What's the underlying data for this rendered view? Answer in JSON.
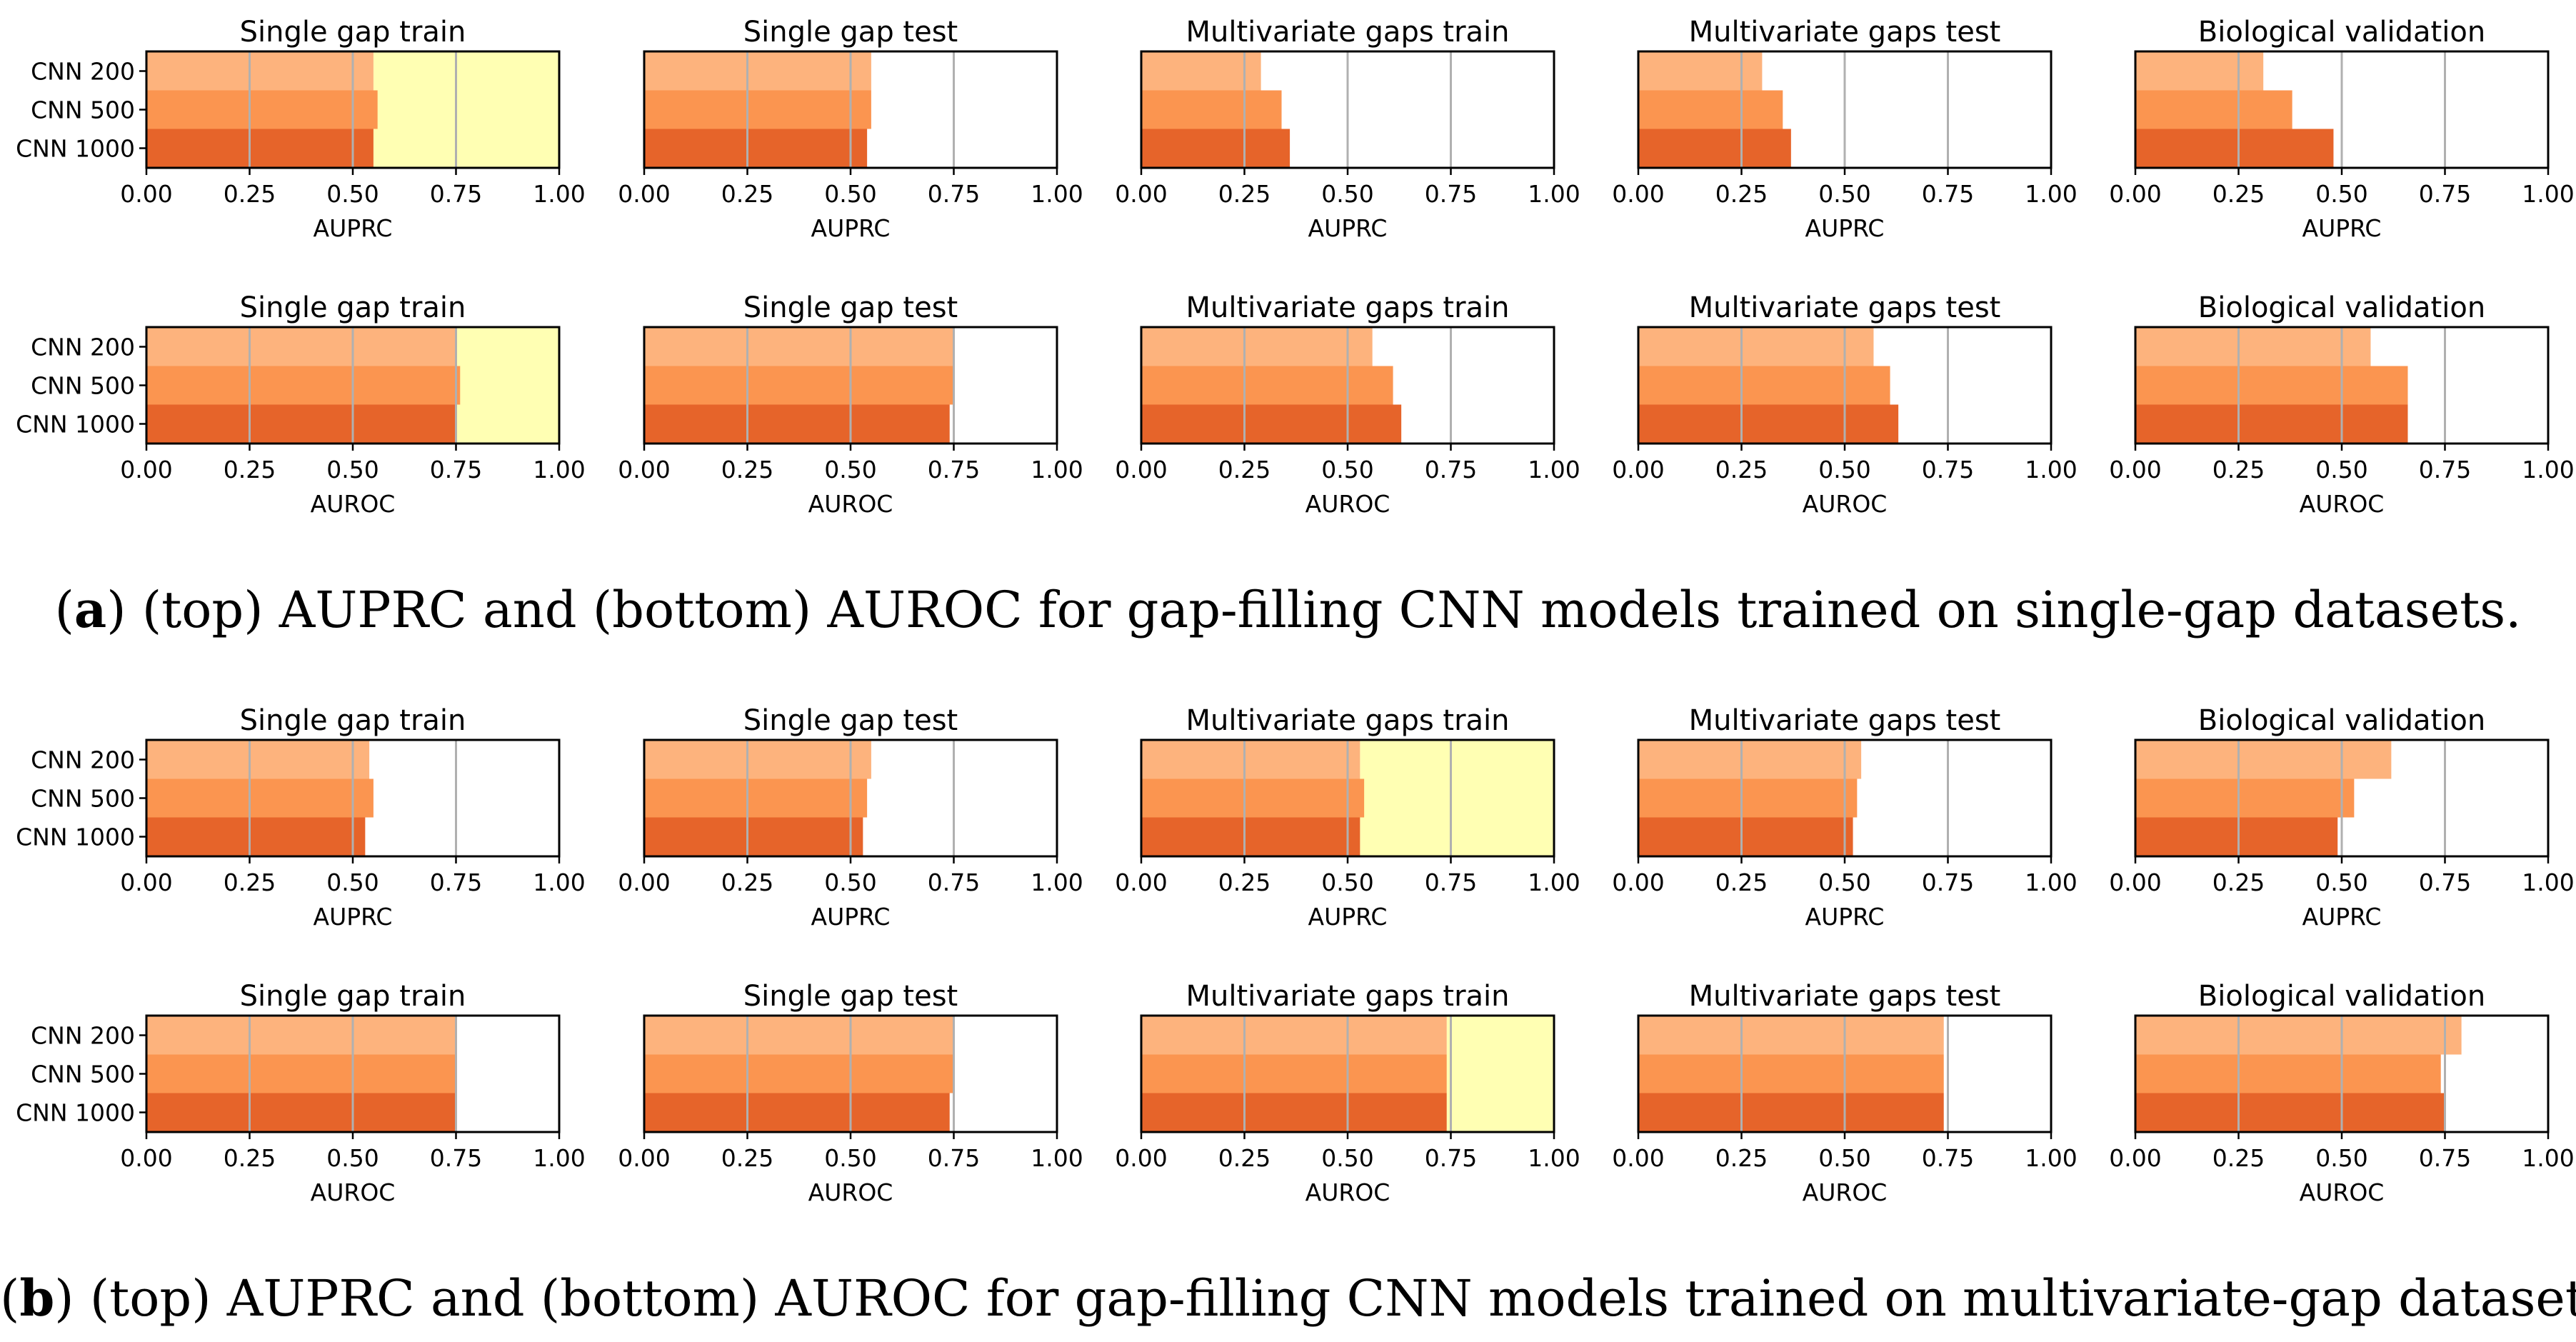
{
  "captions": {
    "a": {
      "letter": "a",
      "text": "(top) AUPRC and (bottom) AUROC for gap-filling CNN models trained on single-gap datasets."
    },
    "b": {
      "letter": "b",
      "text": "(top) AUPRC and (bottom) AUROC for gap-filling CNN models trained on multivariate-gap datasets."
    }
  },
  "colors": {
    "series": [
      "#fdb37d",
      "#fb9550",
      "#e6642a"
    ],
    "highlight": "#ffffb3",
    "grid": "#b0b0b0",
    "axis": "#000000"
  },
  "chart_data": [
    {
      "type": "bar",
      "orientation": "horizontal",
      "title": "Single gap train",
      "xlabel": "AUPRC",
      "categories": [
        "CNN 200",
        "CNN 500",
        "CNN 1000"
      ],
      "values": [
        0.55,
        0.56,
        0.55
      ],
      "xlim": [
        0,
        1
      ],
      "xticks": [
        "0.00",
        "0.25",
        "0.50",
        "0.75",
        "1.00"
      ],
      "grid": "x",
      "highlight": true
    },
    {
      "type": "bar",
      "orientation": "horizontal",
      "title": "Single gap test",
      "xlabel": "AUPRC",
      "categories": [
        "CNN 200",
        "CNN 500",
        "CNN 1000"
      ],
      "values": [
        0.55,
        0.55,
        0.54
      ],
      "xlim": [
        0,
        1
      ],
      "xticks": [
        "0.00",
        "0.25",
        "0.50",
        "0.75",
        "1.00"
      ],
      "grid": "x",
      "highlight": false
    },
    {
      "type": "bar",
      "orientation": "horizontal",
      "title": "Multivariate gaps train",
      "xlabel": "AUPRC",
      "categories": [
        "CNN 200",
        "CNN 500",
        "CNN 1000"
      ],
      "values": [
        0.29,
        0.34,
        0.36
      ],
      "xlim": [
        0,
        1
      ],
      "xticks": [
        "0.00",
        "0.25",
        "0.50",
        "0.75",
        "1.00"
      ],
      "grid": "x",
      "highlight": false
    },
    {
      "type": "bar",
      "orientation": "horizontal",
      "title": "Multivariate gaps test",
      "xlabel": "AUPRC",
      "categories": [
        "CNN 200",
        "CNN 500",
        "CNN 1000"
      ],
      "values": [
        0.3,
        0.35,
        0.37
      ],
      "xlim": [
        0,
        1
      ],
      "xticks": [
        "0.00",
        "0.25",
        "0.50",
        "0.75",
        "1.00"
      ],
      "grid": "x",
      "highlight": false
    },
    {
      "type": "bar",
      "orientation": "horizontal",
      "title": "Biological validation",
      "xlabel": "AUPRC",
      "categories": [
        "CNN 200",
        "CNN 500",
        "CNN 1000"
      ],
      "values": [
        0.31,
        0.38,
        0.48
      ],
      "xlim": [
        0,
        1
      ],
      "xticks": [
        "0.00",
        "0.25",
        "0.50",
        "0.75",
        "1.00"
      ],
      "grid": "x",
      "highlight": false
    },
    {
      "type": "bar",
      "orientation": "horizontal",
      "title": "Single gap train",
      "xlabel": "AUROC",
      "categories": [
        "CNN 200",
        "CNN 500",
        "CNN 1000"
      ],
      "values": [
        0.75,
        0.76,
        0.75
      ],
      "xlim": [
        0,
        1
      ],
      "xticks": [
        "0.00",
        "0.25",
        "0.50",
        "0.75",
        "1.00"
      ],
      "grid": "x",
      "highlight": true
    },
    {
      "type": "bar",
      "orientation": "horizontal",
      "title": "Single gap test",
      "xlabel": "AUROC",
      "categories": [
        "CNN 200",
        "CNN 500",
        "CNN 1000"
      ],
      "values": [
        0.75,
        0.75,
        0.74
      ],
      "xlim": [
        0,
        1
      ],
      "xticks": [
        "0.00",
        "0.25",
        "0.50",
        "0.75",
        "1.00"
      ],
      "grid": "x",
      "highlight": false
    },
    {
      "type": "bar",
      "orientation": "horizontal",
      "title": "Multivariate gaps train",
      "xlabel": "AUROC",
      "categories": [
        "CNN 200",
        "CNN 500",
        "CNN 1000"
      ],
      "values": [
        0.56,
        0.61,
        0.63
      ],
      "xlim": [
        0,
        1
      ],
      "xticks": [
        "0.00",
        "0.25",
        "0.50",
        "0.75",
        "1.00"
      ],
      "grid": "x",
      "highlight": false
    },
    {
      "type": "bar",
      "orientation": "horizontal",
      "title": "Multivariate gaps test",
      "xlabel": "AUROC",
      "categories": [
        "CNN 200",
        "CNN 500",
        "CNN 1000"
      ],
      "values": [
        0.57,
        0.61,
        0.63
      ],
      "xlim": [
        0,
        1
      ],
      "xticks": [
        "0.00",
        "0.25",
        "0.50",
        "0.75",
        "1.00"
      ],
      "grid": "x",
      "highlight": false
    },
    {
      "type": "bar",
      "orientation": "horizontal",
      "title": "Biological validation",
      "xlabel": "AUROC",
      "categories": [
        "CNN 200",
        "CNN 500",
        "CNN 1000"
      ],
      "values": [
        0.57,
        0.66,
        0.66
      ],
      "xlim": [
        0,
        1
      ],
      "xticks": [
        "0.00",
        "0.25",
        "0.50",
        "0.75",
        "1.00"
      ],
      "grid": "x",
      "highlight": false
    },
    {
      "type": "bar",
      "orientation": "horizontal",
      "title": "Single gap train",
      "xlabel": "AUPRC",
      "categories": [
        "CNN 200",
        "CNN 500",
        "CNN 1000"
      ],
      "values": [
        0.54,
        0.55,
        0.53
      ],
      "xlim": [
        0,
        1
      ],
      "xticks": [
        "0.00",
        "0.25",
        "0.50",
        "0.75",
        "1.00"
      ],
      "grid": "x",
      "highlight": false
    },
    {
      "type": "bar",
      "orientation": "horizontal",
      "title": "Single gap test",
      "xlabel": "AUPRC",
      "categories": [
        "CNN 200",
        "CNN 500",
        "CNN 1000"
      ],
      "values": [
        0.55,
        0.54,
        0.53
      ],
      "xlim": [
        0,
        1
      ],
      "xticks": [
        "0.00",
        "0.25",
        "0.50",
        "0.75",
        "1.00"
      ],
      "grid": "x",
      "highlight": false
    },
    {
      "type": "bar",
      "orientation": "horizontal",
      "title": "Multivariate gaps train",
      "xlabel": "AUPRC",
      "categories": [
        "CNN 200",
        "CNN 500",
        "CNN 1000"
      ],
      "values": [
        0.53,
        0.54,
        0.53
      ],
      "xlim": [
        0,
        1
      ],
      "xticks": [
        "0.00",
        "0.25",
        "0.50",
        "0.75",
        "1.00"
      ],
      "grid": "x",
      "highlight": true
    },
    {
      "type": "bar",
      "orientation": "horizontal",
      "title": "Multivariate gaps test",
      "xlabel": "AUPRC",
      "categories": [
        "CNN 200",
        "CNN 500",
        "CNN 1000"
      ],
      "values": [
        0.54,
        0.53,
        0.52
      ],
      "xlim": [
        0,
        1
      ],
      "xticks": [
        "0.00",
        "0.25",
        "0.50",
        "0.75",
        "1.00"
      ],
      "grid": "x",
      "highlight": false
    },
    {
      "type": "bar",
      "orientation": "horizontal",
      "title": "Biological validation",
      "xlabel": "AUPRC",
      "categories": [
        "CNN 200",
        "CNN 500",
        "CNN 1000"
      ],
      "values": [
        0.62,
        0.53,
        0.49
      ],
      "xlim": [
        0,
        1
      ],
      "xticks": [
        "0.00",
        "0.25",
        "0.50",
        "0.75",
        "1.00"
      ],
      "grid": "x",
      "highlight": false
    },
    {
      "type": "bar",
      "orientation": "horizontal",
      "title": "Single gap train",
      "xlabel": "AUROC",
      "categories": [
        "CNN 200",
        "CNN 500",
        "CNN 1000"
      ],
      "values": [
        0.75,
        0.75,
        0.75
      ],
      "xlim": [
        0,
        1
      ],
      "xticks": [
        "0.00",
        "0.25",
        "0.50",
        "0.75",
        "1.00"
      ],
      "grid": "x",
      "highlight": false
    },
    {
      "type": "bar",
      "orientation": "horizontal",
      "title": "Single gap test",
      "xlabel": "AUROC",
      "categories": [
        "CNN 200",
        "CNN 500",
        "CNN 1000"
      ],
      "values": [
        0.75,
        0.75,
        0.74
      ],
      "xlim": [
        0,
        1
      ],
      "xticks": [
        "0.00",
        "0.25",
        "0.50",
        "0.75",
        "1.00"
      ],
      "grid": "x",
      "highlight": false
    },
    {
      "type": "bar",
      "orientation": "horizontal",
      "title": "Multivariate gaps train",
      "xlabel": "AUROC",
      "categories": [
        "CNN 200",
        "CNN 500",
        "CNN 1000"
      ],
      "values": [
        0.74,
        0.74,
        0.74
      ],
      "xlim": [
        0,
        1
      ],
      "xticks": [
        "0.00",
        "0.25",
        "0.50",
        "0.75",
        "1.00"
      ],
      "grid": "x",
      "highlight": true
    },
    {
      "type": "bar",
      "orientation": "horizontal",
      "title": "Multivariate gaps test",
      "xlabel": "AUROC",
      "categories": [
        "CNN 200",
        "CNN 500",
        "CNN 1000"
      ],
      "values": [
        0.74,
        0.74,
        0.74
      ],
      "xlim": [
        0,
        1
      ],
      "xticks": [
        "0.00",
        "0.25",
        "0.50",
        "0.75",
        "1.00"
      ],
      "grid": "x",
      "highlight": false
    },
    {
      "type": "bar",
      "orientation": "horizontal",
      "title": "Biological validation",
      "xlabel": "AUROC",
      "categories": [
        "CNN 200",
        "CNN 500",
        "CNN 1000"
      ],
      "values": [
        0.79,
        0.74,
        0.75
      ],
      "xlim": [
        0,
        1
      ],
      "xticks": [
        "0.00",
        "0.25",
        "0.50",
        "0.75",
        "1.00"
      ],
      "grid": "x",
      "highlight": false
    }
  ]
}
